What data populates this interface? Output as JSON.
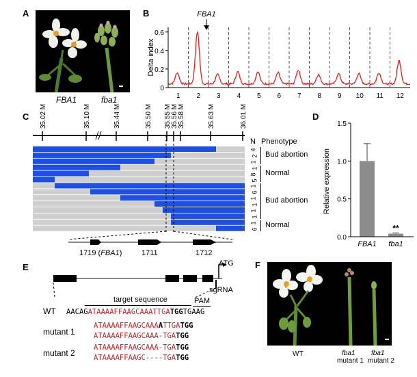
{
  "panels": {
    "a": {
      "label": "A",
      "left_caption": "FBA1",
      "right_caption": "fba1"
    },
    "b": {
      "label": "B",
      "peak_label": "FBA1",
      "ylabel": "Delta index",
      "yticks": [
        "0",
        "0.2",
        "0.4",
        "0.6"
      ],
      "chromosomes": [
        "1",
        "2",
        "3",
        "4",
        "5",
        "6",
        "7",
        "8",
        "9",
        "10",
        "11",
        "12"
      ]
    },
    "c": {
      "label": "C",
      "markers": [
        "35.02 M",
        "35.10 M",
        "35.44 M",
        "35.50 M",
        "35.55 M",
        "35.56 M",
        "35.58 M",
        "35.63 M",
        "36.01 M"
      ],
      "n_header": "N",
      "phenotype_header": "Phenotype",
      "counts": [
        "4",
        "2",
        "1",
        "1",
        "8",
        "5",
        "1",
        "6",
        "1",
        "1",
        "1",
        "1",
        "1",
        "6"
      ],
      "groups": [
        "Bud abortion",
        "Normal",
        "Bud abortion",
        "Normal"
      ],
      "genes": [
        "1719 (FBA1)",
        "1711",
        "1712"
      ]
    },
    "d": {
      "label": "D",
      "ylabel": "Relative expression",
      "yticks": [
        "0.0",
        "0.5",
        "1.0",
        "1.5"
      ],
      "significance": "**"
    },
    "e": {
      "label": "E",
      "atg": "ATG",
      "sgrna": "sgRNA",
      "target_label": "target sequence",
      "pam_label": "PAM",
      "wt_label": "WT",
      "mutant1_label": "mutant 1",
      "mutant2_label": "mutant 2",
      "wt_pre": "AACAG",
      "wt_target": "ATAAAAFFAAGCAAATTGA",
      "wt_pam": "TGG",
      "wt_post": "TGAAG",
      "m1a_r1": "ATAAAAFFAAGCAAA",
      "m1a_ins": "A",
      "m1a_r2": "TTGA",
      "m1a_pam": "TGG",
      "m1b_r1": "ATAAAAFFAAGCAAA",
      "m1b_del": "-",
      "m1b_r2": "TGA",
      "m1b_pam": "TGG",
      "m2a_r1": "ATAAAAFFAAGCAAA",
      "m2a_del": "-",
      "m2a_r2": "TGA",
      "m2a_pam": "TGG",
      "m2b_r1": "ATAAAAFFAAGC",
      "m2b_del": "----",
      "m2b_r2": "TGA",
      "m2b_pam": "TGG"
    },
    "f": {
      "label": "F",
      "wt_caption": "WT",
      "m1_caption_a": "fba1",
      "m1_caption_b": "mutant 1",
      "m2_caption_a": "fba1",
      "m2_caption_b": "mutant 2"
    }
  },
  "colors": {
    "blue": "#1f4fe0",
    "gray": "#cfcfcf",
    "red": "#e02020",
    "bar_gray": "#8c8c8c"
  },
  "chart_data": [
    {
      "type": "line",
      "panel": "B",
      "ylabel": "Delta index",
      "ylim": [
        0,
        0.65
      ],
      "categories": [
        "1",
        "2",
        "3",
        "4",
        "5",
        "6",
        "7",
        "8",
        "9",
        "10",
        "11",
        "12"
      ],
      "series": [
        {
          "peaks": [
            0.16,
            0.6,
            0.14,
            0.17,
            0.17,
            0.16,
            0.19,
            0.14,
            0.15,
            0.15,
            0.16,
            0.29
          ],
          "baseline": 0.04
        }
      ]
    },
    {
      "type": "bar",
      "panel": "D",
      "ylabel": "Relative expression",
      "categories": [
        "FBA1",
        "fba1"
      ],
      "values": [
        1.0,
        0.04
      ],
      "errors": [
        0.23,
        0.01
      ],
      "ylim": [
        0,
        1.5
      ]
    }
  ]
}
